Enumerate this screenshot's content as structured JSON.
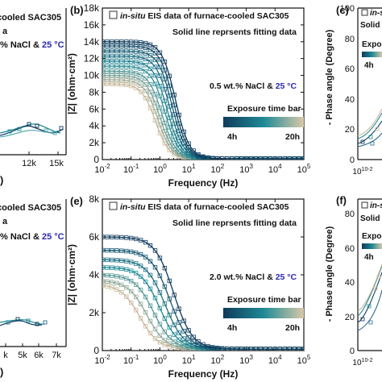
{
  "colors": {
    "dark": "#0f3a5c",
    "mid": "#1f8a95",
    "light": "#c9b89a",
    "fit_line": "#1a4f6a"
  },
  "chart_data": [
    {
      "panel": "(b)",
      "type": "line",
      "x_scale": "log",
      "xlim": [
        0.01,
        100000
      ],
      "ylim": [
        0,
        18000
      ],
      "xlabel": "Frequency (Hz)",
      "ylabel": "|Z| (ohm·cm²)",
      "x_ticks": [
        "10-2",
        "10-1",
        "100",
        "101",
        "102",
        "103",
        "104",
        "105"
      ],
      "y_ticks": [
        "0",
        "2k",
        "4k",
        "6k",
        "8k",
        "10k",
        "12k",
        "14k",
        "16k",
        "18k"
      ],
      "legend_prefix": "in-situ",
      "legend_suffix": " EIS data of furnace-cooled SAC305",
      "fit_note": "Solid line reprsents fitting data",
      "condition_text": "0.5 wt.% NaCl & ",
      "condition_temp": "25 °C",
      "colorbar_title": "Exposure time bar",
      "colorbar_start": "4h",
      "colorbar_end": "20h",
      "series_shape": {
        "f_c": [
          3.5,
          3.0,
          2.6,
          2.2,
          1.8,
          1.5,
          1.2,
          1.0,
          0.85,
          0.7
        ],
        "spread": 0.55
      },
      "series": [
        {
          "high": 14000,
          "low": 100
        },
        {
          "high": 13500,
          "low": 100
        },
        {
          "high": 12900,
          "low": 100
        },
        {
          "high": 12300,
          "low": 100
        },
        {
          "high": 11700,
          "low": 100
        },
        {
          "high": 11100,
          "low": 100
        },
        {
          "high": 10500,
          "low": 100
        },
        {
          "high": 10000,
          "low": 100
        },
        {
          "high": 9500,
          "low": 100
        },
        {
          "high": 9000,
          "low": 100
        }
      ]
    },
    {
      "panel": "(e)",
      "type": "line",
      "x_scale": "log",
      "xlim": [
        0.01,
        100000
      ],
      "ylim": [
        0,
        8000
      ],
      "xlabel": "Frequency (Hz)",
      "ylabel": "|Z| (ohm·cm²)",
      "x_ticks": [
        "10-2",
        "10-1",
        "100",
        "101",
        "102",
        "103",
        "104",
        "105"
      ],
      "y_ticks": [
        "0",
        "2k",
        "4k",
        "6k",
        "8k"
      ],
      "legend_prefix": "in-situ",
      "legend_suffix": " EIS data of furnace-cooled SAC305",
      "fit_note": "Solid line reprsents fitting data",
      "condition_text": "2.0 wt.% NaCl & ",
      "condition_temp": "25 °C",
      "colorbar_title": "Exposure time bar",
      "colorbar_start": "4h",
      "colorbar_end": "20h",
      "series_shape": {
        "f_c": [
          3.0,
          2.2,
          1.5,
          1.0,
          0.6,
          0.35,
          0.2
        ],
        "spread": 0.75
      },
      "series": [
        {
          "high": 6000,
          "low": 80
        },
        {
          "high": 5300,
          "low": 80
        },
        {
          "high": 4800,
          "low": 80
        },
        {
          "high": 4400,
          "low": 80
        },
        {
          "high": 4000,
          "low": 80
        },
        {
          "high": 3700,
          "low": 80
        },
        {
          "high": 3500,
          "low": 80
        }
      ]
    }
  ],
  "panel_a": {
    "legend_tail": "cooled SAC305",
    "solution_tail": "a",
    "condition_text": "% NaCl & ",
    "condition_temp": "25 °C",
    "x_ticks": [
      "12k",
      "15k"
    ],
    "label": ")"
  },
  "panel_d": {
    "legend_tail": "cooled SAC305",
    "solution_tail": "a",
    "condition_text": "% NaCl & ",
    "condition_temp": "25 °C",
    "x_ticks": [
      "k",
      "5k",
      "6k",
      "7k"
    ],
    "label": ")"
  },
  "panel_c": {
    "label": "(c)",
    "ylabel": "- Phase angle (Degree)",
    "legend_prefix": "in-s",
    "fit_prefix": "Solid",
    "colorbar_prefix": "Expos",
    "colorbar_start": "4h",
    "y_ticks": [
      "0",
      "20",
      "40",
      "60",
      "80",
      "100"
    ],
    "x_ticks": [
      "10-2",
      "10-1",
      "100"
    ]
  },
  "panel_f": {
    "label": "(f)",
    "ylabel": "- Phase angle (Degree)",
    "legend_prefix": "in-s",
    "fit_prefix": "Solid",
    "colorbar_prefix": "Expo",
    "colorbar_start": "4h",
    "y_ticks": [
      "0",
      "20",
      "40",
      "60",
      "80"
    ],
    "x_ticks": [
      "10-2",
      "10-1",
      "100"
    ]
  }
}
